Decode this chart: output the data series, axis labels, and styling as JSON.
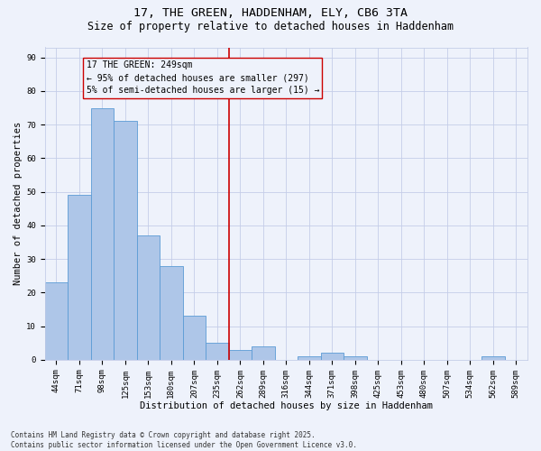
{
  "title1": "17, THE GREEN, HADDENHAM, ELY, CB6 3TA",
  "title2": "Size of property relative to detached houses in Haddenham",
  "xlabel": "Distribution of detached houses by size in Haddenham",
  "ylabel": "Number of detached properties",
  "categories": [
    "44sqm",
    "71sqm",
    "98sqm",
    "125sqm",
    "153sqm",
    "180sqm",
    "207sqm",
    "235sqm",
    "262sqm",
    "289sqm",
    "316sqm",
    "344sqm",
    "371sqm",
    "398sqm",
    "425sqm",
    "453sqm",
    "480sqm",
    "507sqm",
    "534sqm",
    "562sqm",
    "589sqm"
  ],
  "values": [
    23,
    49,
    75,
    71,
    37,
    28,
    13,
    5,
    3,
    4,
    0,
    1,
    2,
    1,
    0,
    0,
    0,
    0,
    0,
    1,
    0
  ],
  "bar_color": "#aec6e8",
  "bar_edgecolor": "#5b9bd5",
  "vline_x": 7.5,
  "vline_color": "#cc0000",
  "annotation_text": "17 THE GREEN: 249sqm\n← 95% of detached houses are smaller (297)\n5% of semi-detached houses are larger (15) →",
  "annotation_box_edgecolor": "#cc0000",
  "ylim": [
    0,
    93
  ],
  "yticks": [
    0,
    10,
    20,
    30,
    40,
    50,
    60,
    70,
    80,
    90
  ],
  "background_color": "#eef2fb",
  "grid_color": "#c5cde8",
  "footer": "Contains HM Land Registry data © Crown copyright and database right 2025.\nContains public sector information licensed under the Open Government Licence v3.0.",
  "title_fontsize": 9.5,
  "subtitle_fontsize": 8.5,
  "axis_label_fontsize": 7.5,
  "tick_fontsize": 6.5,
  "annotation_fontsize": 7.0,
  "footer_fontsize": 5.5
}
